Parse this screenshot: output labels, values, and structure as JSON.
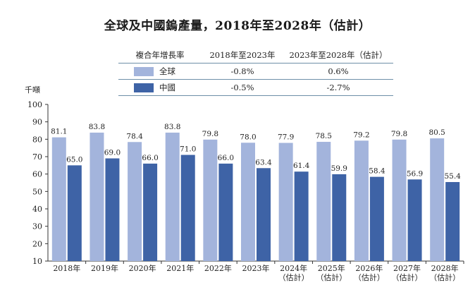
{
  "title": "全球及中國鎢產量，2018年至2028年（估計）",
  "legend_table": {
    "header": [
      "複合年增長率",
      "2018年至2023年",
      "2023年至2028年（估計）"
    ],
    "rows": [
      {
        "name": "全球",
        "color": "#a3b4dc",
        "cagr1": "-0.8%",
        "cagr2": "0.6%"
      },
      {
        "name": "中國",
        "color": "#3e63a6",
        "cagr1": "-0.5%",
        "cagr2": "-2.7%"
      }
    ]
  },
  "chart_data": {
    "type": "bar",
    "title": "全球及中國鎢產量，2018年至2028年（估計）",
    "ylabel": "千噸",
    "xlabel": "",
    "ylim": [
      10,
      100
    ],
    "yticks": [
      10,
      20,
      30,
      40,
      50,
      60,
      70,
      80,
      90,
      100
    ],
    "categories": [
      [
        "2018年"
      ],
      [
        "2019年"
      ],
      [
        "2020年"
      ],
      [
        "2021年"
      ],
      [
        "2022年"
      ],
      [
        "2023年"
      ],
      [
        "2024年",
        "（估計）"
      ],
      [
        "2025年",
        "（估計）"
      ],
      [
        "2026年",
        "（估計）"
      ],
      [
        "2027年",
        "（估計）"
      ],
      [
        "2028年",
        "（估計）"
      ]
    ],
    "series": [
      {
        "name": "全球",
        "color": "#a3b4dc",
        "values": [
          81.1,
          83.8,
          78.4,
          83.8,
          79.8,
          78.0,
          77.9,
          78.5,
          79.2,
          79.8,
          80.5
        ],
        "labels": [
          "81.1",
          "83.8",
          "78.4",
          "83.8",
          "79.8",
          "78.0",
          "77.9",
          "78.5",
          "79.2",
          "79.8",
          "80.5"
        ]
      },
      {
        "name": "中國",
        "color": "#3e63a6",
        "values": [
          65.0,
          69.0,
          66.0,
          71.0,
          66.0,
          63.4,
          61.4,
          59.9,
          58.4,
          56.9,
          55.4
        ],
        "labels": [
          "65.0",
          "69.0",
          "66.0",
          "71.0",
          "66.0",
          "63.4",
          "61.4",
          "59.9",
          "58.4",
          "56.9",
          "55.4"
        ]
      }
    ]
  }
}
